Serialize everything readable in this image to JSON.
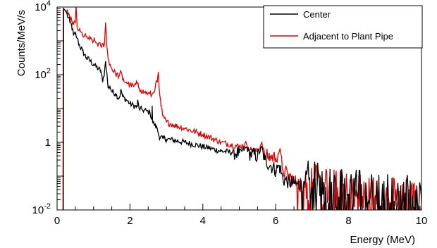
{
  "chart_data": {
    "type": "line",
    "xlabel": "Energy (MeV)",
    "ylabel": "Counts/MeV/s",
    "xlim": [
      0,
      10
    ],
    "ylim": [
      0.01,
      10000
    ],
    "yscale": "log",
    "x_ticks": [
      {
        "value": 0,
        "label": "0"
      },
      {
        "value": 2,
        "label": "2"
      },
      {
        "value": 4,
        "label": "4"
      },
      {
        "value": 6,
        "label": "6"
      },
      {
        "value": 8,
        "label": "8"
      },
      {
        "value": 10,
        "label": "10"
      }
    ],
    "y_ticks": [
      {
        "value": 0.01,
        "base": "10",
        "exp": "-2"
      },
      {
        "value": 1,
        "label": "1"
      },
      {
        "value": 100,
        "base": "10",
        "exp": "2"
      },
      {
        "value": 10000,
        "base": "10",
        "exp": "4"
      }
    ],
    "legend_position": "top-right",
    "series": [
      {
        "name": "Center",
        "color": "#000000",
        "points": [
          [
            0.17,
            0.01
          ],
          [
            0.18,
            9000
          ],
          [
            0.2,
            8500
          ],
          [
            0.25,
            7000
          ],
          [
            0.3,
            5000
          ],
          [
            0.35,
            3500
          ],
          [
            0.4,
            2800
          ],
          [
            0.45,
            1500
          ],
          [
            0.5,
            1600
          ],
          [
            0.55,
            1200
          ],
          [
            0.6,
            800
          ],
          [
            0.7,
            500
          ],
          [
            0.8,
            320
          ],
          [
            0.9,
            260
          ],
          [
            1.0,
            200
          ],
          [
            1.1,
            160
          ],
          [
            1.2,
            130
          ],
          [
            1.25,
            60
          ],
          [
            1.3,
            120
          ],
          [
            1.33,
            250
          ],
          [
            1.36,
            130
          ],
          [
            1.4,
            40
          ],
          [
            1.45,
            45
          ],
          [
            1.5,
            32
          ],
          [
            1.6,
            28
          ],
          [
            1.7,
            20
          ],
          [
            1.76,
            35
          ],
          [
            1.8,
            22
          ],
          [
            1.9,
            18
          ],
          [
            2.0,
            14
          ],
          [
            2.1,
            12
          ],
          [
            2.2,
            11
          ],
          [
            2.21,
            18
          ],
          [
            2.25,
            10
          ],
          [
            2.35,
            9
          ],
          [
            2.45,
            8.5
          ],
          [
            2.55,
            7.5
          ],
          [
            2.6,
            5
          ],
          [
            2.61,
            12
          ],
          [
            2.62,
            4
          ],
          [
            2.7,
            3
          ],
          [
            2.75,
            2.5
          ],
          [
            2.8,
            1.5
          ],
          [
            2.9,
            1.3
          ],
          [
            3.0,
            1.25
          ],
          [
            3.5,
            1.0
          ],
          [
            4.0,
            0.75
          ],
          [
            4.5,
            0.55
          ],
          [
            5.0,
            0.48
          ],
          [
            5.2,
            0.7
          ],
          [
            5.3,
            0.45
          ],
          [
            5.5,
            0.4
          ],
          [
            5.62,
            0.7
          ],
          [
            5.7,
            0.3
          ],
          [
            6.0,
            0.15
          ],
          [
            6.1,
            0.2
          ],
          [
            6.2,
            0.08
          ],
          [
            6.5,
            0.06
          ],
          [
            7.0,
            0.045
          ],
          [
            7.5,
            0.035
          ],
          [
            8.0,
            0.03
          ],
          [
            8.5,
            0.025
          ],
          [
            9.0,
            0.02
          ],
          [
            9.5,
            0.018
          ],
          [
            10.0,
            0.015
          ]
        ]
      },
      {
        "name": "Adjacent to Plant Pipe",
        "color": "#e00000",
        "points": [
          [
            0.16,
            0.01
          ],
          [
            0.17,
            9000
          ],
          [
            0.2,
            8500
          ],
          [
            0.25,
            7500
          ],
          [
            0.3,
            6000
          ],
          [
            0.35,
            4500
          ],
          [
            0.4,
            4200
          ],
          [
            0.45,
            3000
          ],
          [
            0.5,
            3500
          ],
          [
            0.52,
            11000
          ],
          [
            0.55,
            2500
          ],
          [
            0.6,
            2000
          ],
          [
            0.7,
            1500
          ],
          [
            0.8,
            1300
          ],
          [
            0.9,
            1100
          ],
          [
            1.0,
            1000
          ],
          [
            1.1,
            850
          ],
          [
            1.2,
            700
          ],
          [
            1.3,
            800
          ],
          [
            1.33,
            3500
          ],
          [
            1.36,
            800
          ],
          [
            1.4,
            300
          ],
          [
            1.5,
            150
          ],
          [
            1.6,
            110
          ],
          [
            1.7,
            90
          ],
          [
            1.76,
            120
          ],
          [
            1.8,
            70
          ],
          [
            1.9,
            60
          ],
          [
            2.0,
            50
          ],
          [
            2.1,
            45
          ],
          [
            2.2,
            55
          ],
          [
            2.25,
            40
          ],
          [
            2.3,
            35
          ],
          [
            2.4,
            30
          ],
          [
            2.5,
            28
          ],
          [
            2.6,
            25
          ],
          [
            2.65,
            30
          ],
          [
            2.7,
            50
          ],
          [
            2.75,
            60
          ],
          [
            2.78,
            120
          ],
          [
            2.8,
            40
          ],
          [
            2.85,
            12
          ],
          [
            2.9,
            6
          ],
          [
            3.0,
            4
          ],
          [
            3.2,
            3.2
          ],
          [
            3.5,
            2.6
          ],
          [
            4.0,
            1.7
          ],
          [
            4.5,
            1.0
          ],
          [
            5.0,
            0.75
          ],
          [
            5.2,
            0.9
          ],
          [
            5.3,
            0.6
          ],
          [
            5.5,
            0.55
          ],
          [
            5.62,
            1.0
          ],
          [
            5.7,
            0.4
          ],
          [
            6.0,
            0.35
          ],
          [
            6.1,
            0.55
          ],
          [
            6.2,
            0.15
          ],
          [
            6.5,
            0.07
          ],
          [
            7.0,
            0.04
          ],
          [
            7.5,
            0.03
          ],
          [
            8.0,
            0.025
          ],
          [
            8.5,
            0.02
          ],
          [
            9.0,
            0.02
          ],
          [
            9.5,
            0.015
          ],
          [
            10.0,
            0.012
          ]
        ]
      }
    ]
  }
}
